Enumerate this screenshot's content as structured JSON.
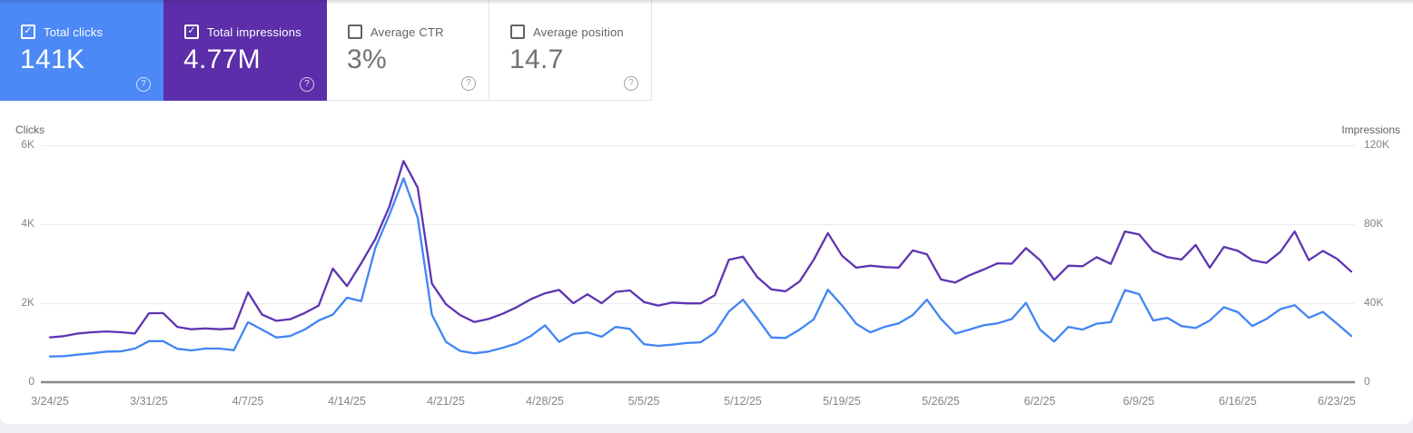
{
  "page": {
    "background": "#edeff4",
    "card_background": "#ffffff"
  },
  "metrics": {
    "check_glyph": "✓",
    "help_glyph": "?",
    "cards": [
      {
        "label": "Total clicks",
        "value": "141K",
        "selected": true,
        "background": "#4c89f6",
        "text_color": "#ffffff"
      },
      {
        "label": "Total impressions",
        "value": "4.77M",
        "selected": true,
        "background": "#5c2ea9",
        "text_color": "#ffffff"
      },
      {
        "label": "Average CTR",
        "value": "3%",
        "selected": false,
        "background": "#ffffff",
        "text_color": "#5f6368"
      },
      {
        "label": "Average position",
        "value": "14.7",
        "selected": false,
        "background": "#ffffff",
        "text_color": "#5f6368"
      }
    ]
  },
  "chart_data": {
    "type": "line",
    "grid": "horizontal",
    "x_tick_labels": [
      "3/24/25",
      "3/31/25",
      "4/7/25",
      "4/14/25",
      "4/21/25",
      "4/28/25",
      "5/5/25",
      "5/12/25",
      "5/19/25",
      "5/26/25",
      "6/2/25",
      "6/9/25",
      "6/16/25",
      "6/23/25"
    ],
    "x_tick_interval_days": 7,
    "left_axis": {
      "label": "Clicks",
      "ticks": [
        "0",
        "2K",
        "4K",
        "6K"
      ],
      "max": 6000
    },
    "right_axis": {
      "label": "Impressions",
      "ticks": [
        "0",
        "40K",
        "80K",
        "120K"
      ],
      "max": 120000
    },
    "series": [
      {
        "name": "Clicks",
        "color": "#4285f4",
        "axis": "left",
        "values": [
          650,
          660,
          700,
          730,
          775,
          780,
          850,
          1040,
          1040,
          845,
          805,
          850,
          850,
          810,
          1520,
          1330,
          1130,
          1170,
          1330,
          1560,
          1710,
          2140,
          2050,
          3400,
          4240,
          5160,
          4160,
          1710,
          1020,
          790,
          730,
          775,
          870,
          980,
          1170,
          1440,
          1020,
          1220,
          1260,
          1150,
          1400,
          1350,
          960,
          920,
          950,
          990,
          1010,
          1250,
          1790,
          2090,
          1620,
          1130,
          1120,
          1330,
          1590,
          2340,
          1940,
          1480,
          1260,
          1400,
          1490,
          1700,
          2090,
          1600,
          1230,
          1330,
          1440,
          1490,
          1600,
          2010,
          1330,
          1030,
          1400,
          1330,
          1480,
          1520,
          2330,
          2230,
          1560,
          1630,
          1420,
          1370,
          1560,
          1900,
          1770,
          1420,
          1600,
          1850,
          1950,
          1630,
          1780,
          1480,
          1170
        ]
      },
      {
        "name": "Impressions",
        "color": "#5e35b1",
        "axis": "right",
        "values": [
          22700,
          23300,
          24700,
          25300,
          25700,
          25300,
          24700,
          34900,
          35000,
          28000,
          26800,
          27200,
          26800,
          27200,
          45500,
          34200,
          31100,
          31900,
          35000,
          38800,
          57500,
          48700,
          60200,
          72500,
          89000,
          112000,
          98500,
          50000,
          39500,
          34000,
          30500,
          32000,
          34600,
          38000,
          42000,
          45000,
          46700,
          40000,
          44500,
          40000,
          45700,
          46500,
          40600,
          38800,
          40300,
          39900,
          39900,
          44000,
          62000,
          63600,
          53300,
          47000,
          46000,
          51000,
          62000,
          75500,
          64000,
          58000,
          59000,
          58300,
          58000,
          66700,
          64800,
          52000,
          50500,
          54100,
          57000,
          60200,
          60000,
          67900,
          61800,
          51800,
          59000,
          58700,
          63300,
          59900,
          76300,
          74800,
          66400,
          63300,
          62100,
          69500,
          58000,
          68500,
          66500,
          61800,
          60400,
          66000,
          76300,
          61800,
          66500,
          62500,
          56000
        ]
      }
    ]
  }
}
